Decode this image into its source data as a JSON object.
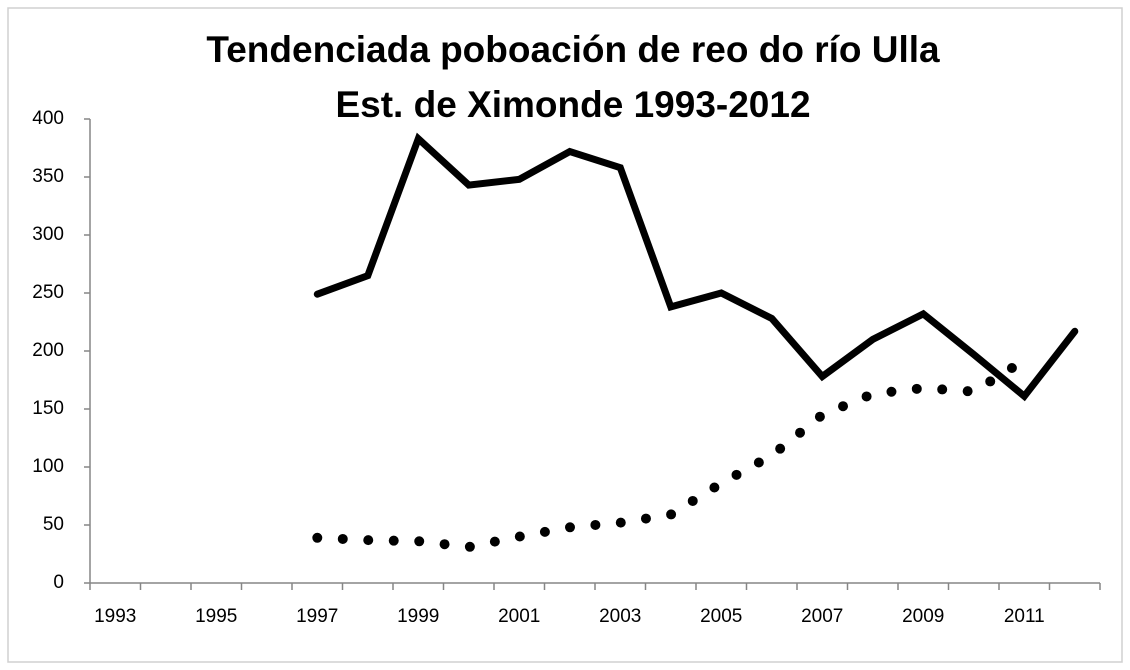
{
  "chart_data": {
    "type": "line",
    "title": "Tendenciada  poboación de reo do río Ulla",
    "subtitle": "Est. de Ximonde 1993-2012",
    "categories": [
      "1993",
      null,
      "1995",
      null,
      "1997",
      null,
      "1999",
      null,
      "2001",
      null,
      "2003",
      null,
      "2005",
      null,
      "2007",
      null,
      "2009",
      null,
      "2011",
      null
    ],
    "series": [
      {
        "color": "#000000",
        "style": "solid",
        "values": [
          null,
          null,
          null,
          null,
          249,
          265,
          383,
          343,
          348,
          372,
          358,
          238,
          250,
          228,
          178,
          210,
          232,
          197,
          161,
          217
        ]
      },
      {
        "color": "#000000",
        "style": "dotted",
        "values": [
          null,
          null,
          null,
          null,
          39,
          37,
          36,
          31,
          40,
          48,
          52,
          59,
          86,
          110,
          145,
          163,
          168,
          165,
          192,
          null
        ]
      }
    ],
    "ylim": [
      0,
      400
    ],
    "yticks": [
      0,
      50,
      100,
      150,
      200,
      250,
      300,
      350,
      400
    ],
    "grid": false
  }
}
